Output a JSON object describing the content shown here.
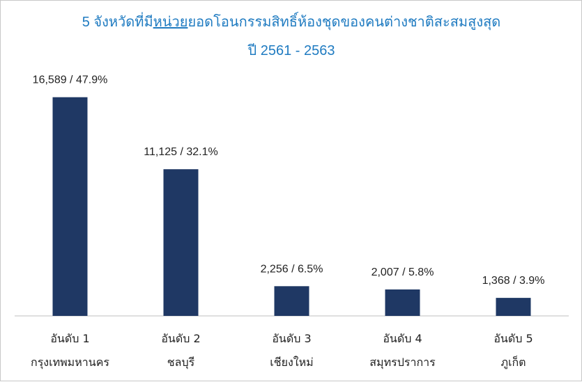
{
  "chart_data": {
    "type": "bar",
    "title_prefix": "5 จังหวัดที่มี",
    "title_underlined": "หน่วย",
    "title_suffix": "ยอดโอนกรรมสิทธิ์ห้องชุดของคนต่างชาติสะสมสูงสุด",
    "subtitle": "ปี 2561 - 2563",
    "categories": [
      {
        "rank": "อันดับ 1",
        "province": "กรุงเทพมหานคร"
      },
      {
        "rank": "อันดับ 2",
        "province": "ชลบุรี"
      },
      {
        "rank": "อันดับ 3",
        "province": "เชียงใหม่"
      },
      {
        "rank": "อันดับ 4",
        "province": "สมุทรปราการ"
      },
      {
        "rank": "อันดับ 5",
        "province": "ภูเก็ต"
      }
    ],
    "values": [
      16589,
      11125,
      2256,
      2007,
      1368
    ],
    "data_labels": [
      "16,589 / 47.9%",
      "11,125 / 32.1%",
      "2,256 / 6.5%",
      "2,007 / 5.8%",
      "1,368 / 3.9%"
    ],
    "percents": [
      47.9,
      32.1,
      6.5,
      5.8,
      3.9
    ],
    "ylim": [
      0,
      18000
    ],
    "bar_color": "#1f3864",
    "title_color": "#1f7bc1",
    "grid": false,
    "legend": "none"
  }
}
